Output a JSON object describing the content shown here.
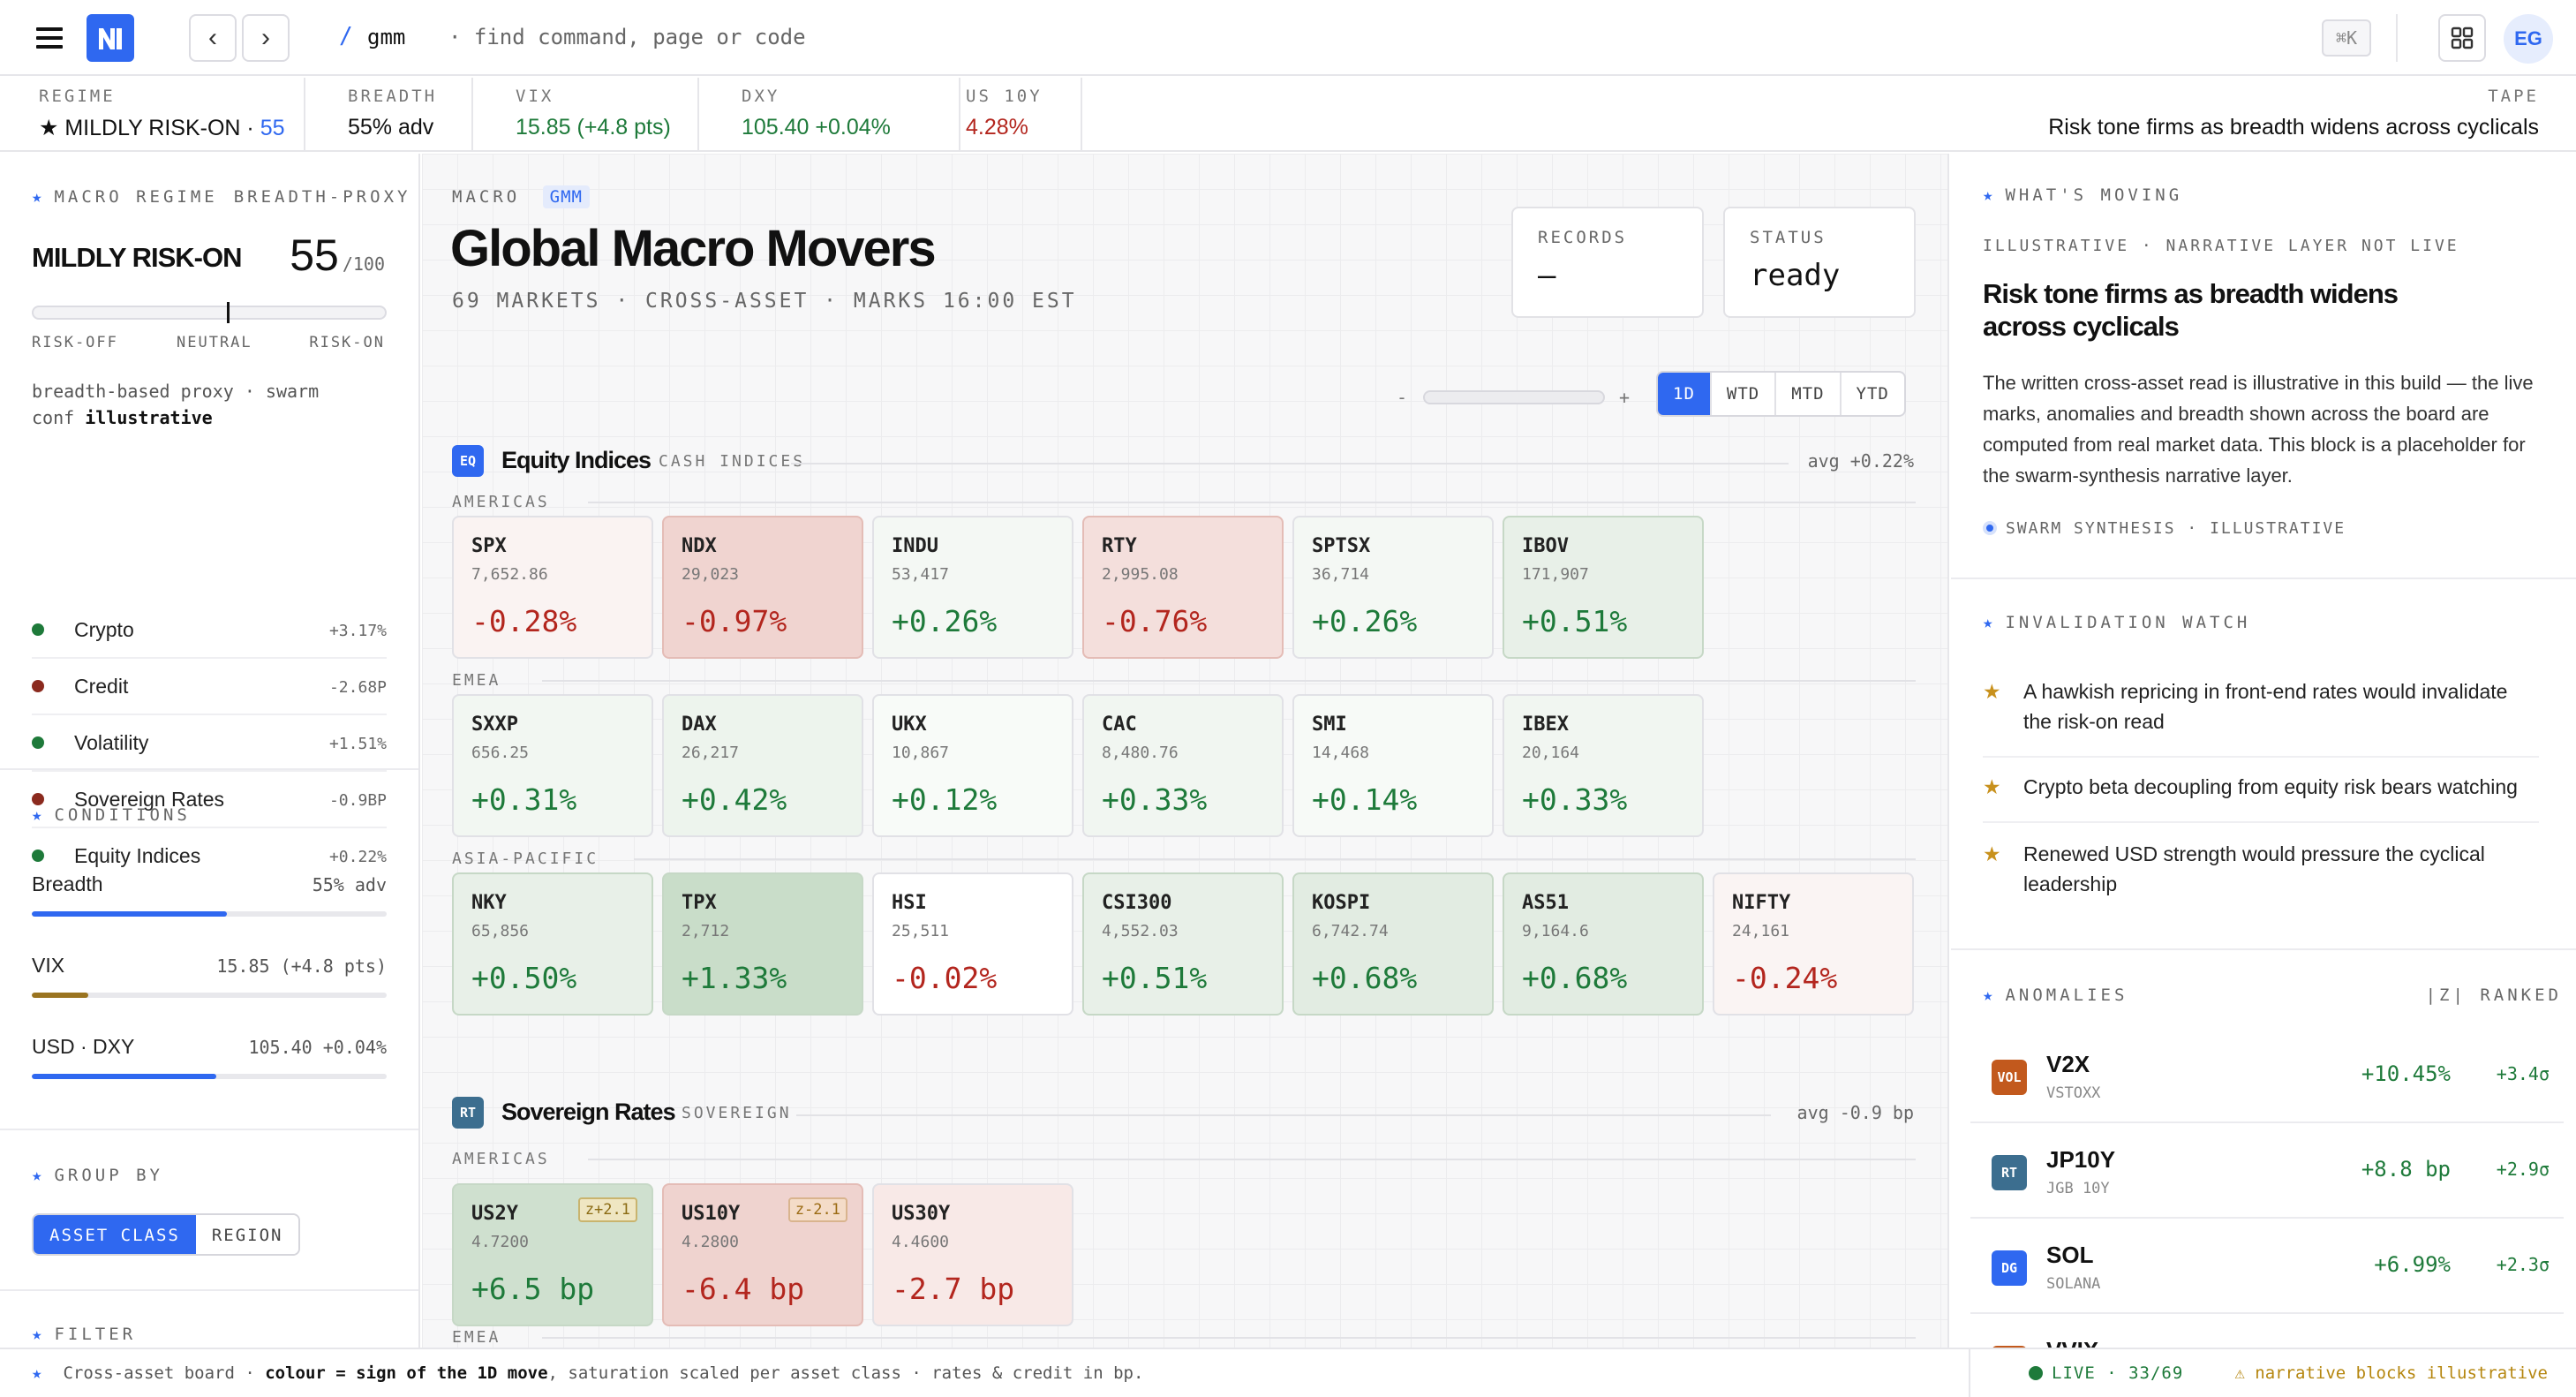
{
  "topbar": {
    "crumb_sep": "/",
    "crumb": "gmm",
    "search_placeholder": "· find command, page or code",
    "shortcut": "⌘K",
    "avatar": "EG"
  },
  "strip": {
    "regime": {
      "label": "REGIME",
      "value": "★ MILDLY RISK-ON · ",
      "score": "55"
    },
    "breadth": {
      "label": "BREADTH",
      "value": "55% adv"
    },
    "vix": {
      "label": "VIX",
      "value": "15.85 (+4.8 pts)"
    },
    "dxy": {
      "label": "DXY",
      "value": "105.40 +0.04%"
    },
    "us10y": {
      "label": "US 10Y",
      "value": "4.28%"
    },
    "tape": {
      "label": "TAPE",
      "value": "Risk tone firms as breadth widens across cyclicals"
    }
  },
  "left": {
    "regime_title": "MACRO REGIME",
    "regime_sub": "BREADTH-PROXY",
    "regime_name": "MILDLY RISK-ON",
    "regime_score": "55",
    "regime_scale": "/100",
    "regime_marker_fraction": 0.55,
    "scale_left": "RISK-OFF",
    "scale_mid": "NEUTRAL",
    "scale_right": "RISK-ON",
    "note_line1": "breadth-based proxy · swarm",
    "note_line2a": "conf ",
    "note_line2b": "illustrative",
    "classes": [
      {
        "name": "Crypto",
        "value": "+3.17%",
        "color": "#1e7a3a"
      },
      {
        "name": "Credit",
        "value": "-2.68P",
        "color": "#8b2a1e"
      },
      {
        "name": "Volatility",
        "value": "+1.51%",
        "color": "#1e7a3a"
      },
      {
        "name": "Sovereign Rates",
        "value": "-0.9BP",
        "color": "#8b2a1e"
      },
      {
        "name": "Equity Indices",
        "value": "+0.22%",
        "color": "#1e7a3a"
      }
    ],
    "conditions_title": "CONDITIONS",
    "conditions": [
      {
        "name": "Breadth",
        "value": "55% adv",
        "level": 0.55,
        "color": "#2f68f0"
      },
      {
        "name": "VIX",
        "value": "15.85 (+4.8 pts)",
        "level": 0.16,
        "color": "#9a7420"
      },
      {
        "name": "USD · DXY",
        "value": "105.40 +0.04%",
        "level": 0.52,
        "color": "#2f68f0"
      }
    ],
    "group_title": "GROUP BY",
    "group_options": [
      "ASSET CLASS",
      "REGION"
    ],
    "filter_title": "FILTER"
  },
  "center": {
    "eyebrow": "MACRO",
    "eyebrow_tag": "GMM",
    "title": "Global Macro Movers",
    "subtitle": "69 MARKETS · CROSS-ASSET · MARKS 16:00 EST",
    "records_label": "RECORDS",
    "records_value": "—",
    "status_label": "STATUS",
    "status_value": "ready",
    "zoom_minus": "-",
    "zoom_plus": "+",
    "periods": [
      "1D",
      "WTD",
      "MTD",
      "YTD"
    ],
    "equity": {
      "badge": "EQ",
      "title": "Equity Indices",
      "tag": "CASH INDICES",
      "avg": "avg +0.22%",
      "regions": [
        {
          "name": "AMERICAS",
          "tiles": [
            {
              "sym": "SPX",
              "px": "7,652.86",
              "chg": "-0.28%",
              "dir": "neg",
              "bg": "#faf3f2"
            },
            {
              "sym": "NDX",
              "px": "29,023",
              "chg": "-0.97%",
              "dir": "neg",
              "bg": "#f0d4d0"
            },
            {
              "sym": "INDU",
              "px": "53,417",
              "chg": "+0.26%",
              "dir": "pos",
              "bg": "#f4f8f4"
            },
            {
              "sym": "RTY",
              "px": "2,995.08",
              "chg": "-0.76%",
              "dir": "neg",
              "bg": "#f4dfdc"
            },
            {
              "sym": "SPTSX",
              "px": "36,714",
              "chg": "+0.26%",
              "dir": "pos",
              "bg": "#f4f8f4"
            },
            {
              "sym": "IBOV",
              "px": "171,907",
              "chg": "+0.51%",
              "dir": "pos",
              "bg": "#e8f0e8"
            }
          ]
        },
        {
          "name": "EMEA",
          "tiles": [
            {
              "sym": "SXXP",
              "px": "656.25",
              "chg": "+0.31%",
              "dir": "pos",
              "bg": "#f2f7f2"
            },
            {
              "sym": "DAX",
              "px": "26,217",
              "chg": "+0.42%",
              "dir": "pos",
              "bg": "#edf4ed"
            },
            {
              "sym": "UKX",
              "px": "10,867",
              "chg": "+0.12%",
              "dir": "pos",
              "bg": "#f8fbf8"
            },
            {
              "sym": "CAC",
              "px": "8,480.76",
              "chg": "+0.33%",
              "dir": "pos",
              "bg": "#f1f6f1"
            },
            {
              "sym": "SMI",
              "px": "14,468",
              "chg": "+0.14%",
              "dir": "pos",
              "bg": "#f7faf7"
            },
            {
              "sym": "IBEX",
              "px": "20,164",
              "chg": "+0.33%",
              "dir": "pos",
              "bg": "#f1f6f1"
            }
          ]
        },
        {
          "name": "ASIA-PACIFIC",
          "tiles": [
            {
              "sym": "NKY",
              "px": "65,856",
              "chg": "+0.50%",
              "dir": "pos",
              "bg": "#e8f0e8"
            },
            {
              "sym": "TPX",
              "px": "2,712",
              "chg": "+1.33%",
              "dir": "pos",
              "bg": "#c9ddc9"
            },
            {
              "sym": "HSI",
              "px": "25,511",
              "chg": "-0.02%",
              "dir": "neg",
              "bg": "#ffffff"
            },
            {
              "sym": "CSI300",
              "px": "4,552.03",
              "chg": "+0.51%",
              "dir": "pos",
              "bg": "#e8f0e8"
            },
            {
              "sym": "KOSPI",
              "px": "6,742.74",
              "chg": "+0.68%",
              "dir": "pos",
              "bg": "#e2ece2"
            },
            {
              "sym": "AS51",
              "px": "9,164.6",
              "chg": "+0.68%",
              "dir": "pos",
              "bg": "#e2ece2"
            },
            {
              "sym": "NIFTY",
              "px": "24,161",
              "chg": "-0.24%",
              "dir": "neg",
              "bg": "#faf4f3"
            }
          ]
        }
      ]
    },
    "rates": {
      "badge": "RT",
      "title": "Sovereign Rates",
      "tag": "SOVEREIGN",
      "avg": "avg -0.9 bp",
      "region": "AMERICAS",
      "tiles": [
        {
          "sym": "US2Y",
          "px": "4.7200",
          "chg": "+6.5 bp",
          "dir": "pos",
          "bg": "#cfe0cf",
          "z": "z+2.1"
        },
        {
          "sym": "US10Y",
          "px": "4.2800",
          "chg": "-6.4 bp",
          "dir": "neg",
          "bg": "#efd3cf",
          "z": "z-2.1"
        },
        {
          "sym": "US30Y",
          "px": "4.4600",
          "chg": "-2.7 bp",
          "dir": "neg",
          "bg": "#f8e9e7",
          "z": ""
        }
      ],
      "next_region": "EMEA"
    }
  },
  "right": {
    "moving_title": "WHAT'S MOVING",
    "moving_sub": "ILLUSTRATIVE · NARRATIVE LAYER NOT LIVE",
    "headline_line1": "Risk tone firms as breadth widens",
    "headline_line2": "across cyclicals",
    "body": "The written cross-asset read is illustrative in this build — the live marks, anomalies and breadth shown across the board are computed from real market data. This block is a placeholder for the swarm-synthesis narrative layer.",
    "synth": "SWARM SYNTHESIS · ILLUSTRATIVE",
    "inv_title": "INVALIDATION WATCH",
    "invalidations": [
      "A hawkish repricing in front-end rates would invalidate the risk-on read",
      "Crypto beta decoupling from equity risk bears watching",
      "Renewed USD strength would pressure the cyclical leadership"
    ],
    "anom_title": "ANOMALIES",
    "anom_rank": "|Z| RANKED",
    "anomalies": [
      {
        "badge": "VOL",
        "badge_color": "#c2591d",
        "sym": "V2X",
        "desc": "VSTOXX",
        "chg": "+10.45%",
        "z": "+3.4σ"
      },
      {
        "badge": "RT",
        "badge_color": "#3c6e8f",
        "sym": "JP10Y",
        "desc": "JGB 10Y",
        "chg": "+8.8 bp",
        "z": "+2.9σ"
      },
      {
        "badge": "DG",
        "badge_color": "#2f68f0",
        "sym": "SOL",
        "desc": "SOLANA",
        "chg": "+6.99%",
        "z": "+2.3σ"
      },
      {
        "badge": "VOL",
        "badge_color": "#c2591d",
        "sym": "VVIX",
        "desc": "",
        "chg": "",
        "z": ""
      }
    ]
  },
  "footer": {
    "star": "★",
    "text_a": "Cross-asset board · ",
    "text_b": "colour = sign of the 1D move",
    "text_c": ", saturation scaled per asset class · rates & credit in bp.",
    "live": "LIVE · 33/69",
    "warn": "⚠ narrative blocks illustrative"
  }
}
